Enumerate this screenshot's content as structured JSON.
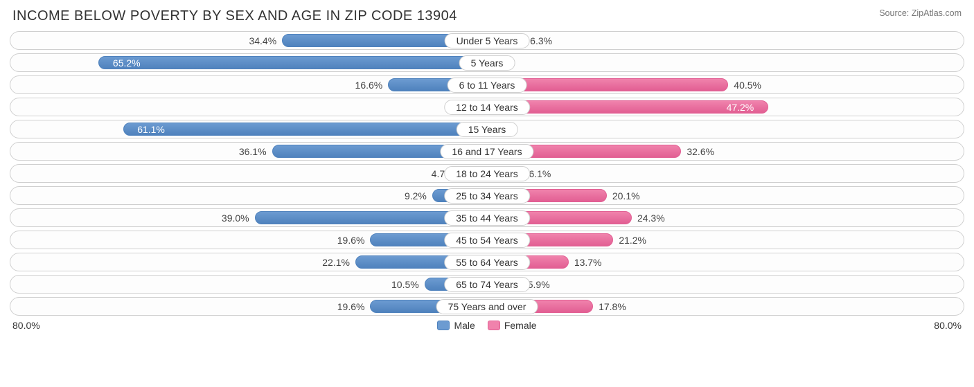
{
  "title": "INCOME BELOW POVERTY BY SEX AND AGE IN ZIP CODE 13904",
  "source": "Source: ZipAtlas.com",
  "axis_max": 80.0,
  "axis_left_label": "80.0%",
  "axis_right_label": "80.0%",
  "legend": {
    "male_label": "Male",
    "female_label": "Female"
  },
  "colors": {
    "male_fill": "#6c9bd1",
    "male_border": "#4f82bd",
    "female_fill": "#f082ac",
    "female_border": "#e25f93",
    "row_border": "#cfcfcf",
    "text": "#333333",
    "value_text": "#444444",
    "background": "#ffffff",
    "title_text": "#333333",
    "source_text": "#777777"
  },
  "fonts": {
    "title_size": 20,
    "label_size": 14,
    "source_size": 12.5
  },
  "rows": [
    {
      "category": "Under 5 Years",
      "male": 34.4,
      "female": 6.3
    },
    {
      "category": "5 Years",
      "male": 65.2,
      "female": 0.0
    },
    {
      "category": "6 to 11 Years",
      "male": 16.6,
      "female": 40.5
    },
    {
      "category": "12 to 14 Years",
      "male": 0.0,
      "female": 47.2
    },
    {
      "category": "15 Years",
      "male": 61.1,
      "female": 0.0
    },
    {
      "category": "16 and 17 Years",
      "male": 36.1,
      "female": 32.6
    },
    {
      "category": "18 to 24 Years",
      "male": 4.7,
      "female": 6.1
    },
    {
      "category": "25 to 34 Years",
      "male": 9.2,
      "female": 20.1
    },
    {
      "category": "35 to 44 Years",
      "male": 39.0,
      "female": 24.3
    },
    {
      "category": "45 to 54 Years",
      "male": 19.6,
      "female": 21.2
    },
    {
      "category": "55 to 64 Years",
      "male": 22.1,
      "female": 13.7
    },
    {
      "category": "65 to 74 Years",
      "male": 10.5,
      "female": 5.9
    },
    {
      "category": "75 Years and over",
      "male": 19.6,
      "female": 17.8
    }
  ]
}
